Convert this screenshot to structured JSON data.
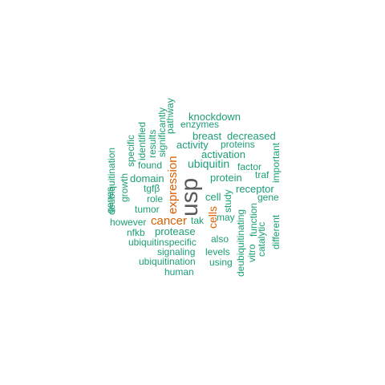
{
  "colors": {
    "green": "#1b9e77",
    "orange": "#d95f02",
    "gray": "#5a5a5a",
    "background": "#ffffff"
  },
  "words": {
    "usp": "usp",
    "expression": "expression",
    "cancer": "cancer",
    "cells": "cells",
    "knockdown": "knockdown",
    "enzymes": "enzymes",
    "breast": "breast",
    "decreased": "decreased",
    "activity": "activity",
    "proteins": "proteins",
    "activation": "activation",
    "ubiquitin": "ubiquitin",
    "factor": "factor",
    "protein": "protein",
    "traf": "traf",
    "receptor": "receptor",
    "cell": "cell",
    "gene": "gene",
    "found": "found",
    "domain": "domain",
    "tgfb": "tgfβ",
    "role": "role",
    "tumor": "tumor",
    "however": "however",
    "nfkb": "nfkb",
    "protease": "protease",
    "tak": "tak",
    "may": "may",
    "also": "also",
    "ubiquitinspecific": "ubiquitinspecific",
    "signaling": "signaling",
    "levels": "levels",
    "ubiquitination": "ubiquitination",
    "using": "using",
    "human": "human",
    "deubiquitination": "deubiquitination",
    "specific": "specific",
    "identified": "identified",
    "results": "results",
    "significantly": "significantly",
    "pathway": "pathway",
    "genes": "genes",
    "growth": "growth",
    "study": "study",
    "deubiquitinating": "deubiquitinating",
    "vitro": "vitro",
    "function": "function",
    "catalytic": "catalytic",
    "important": "important",
    "different": "different"
  }
}
